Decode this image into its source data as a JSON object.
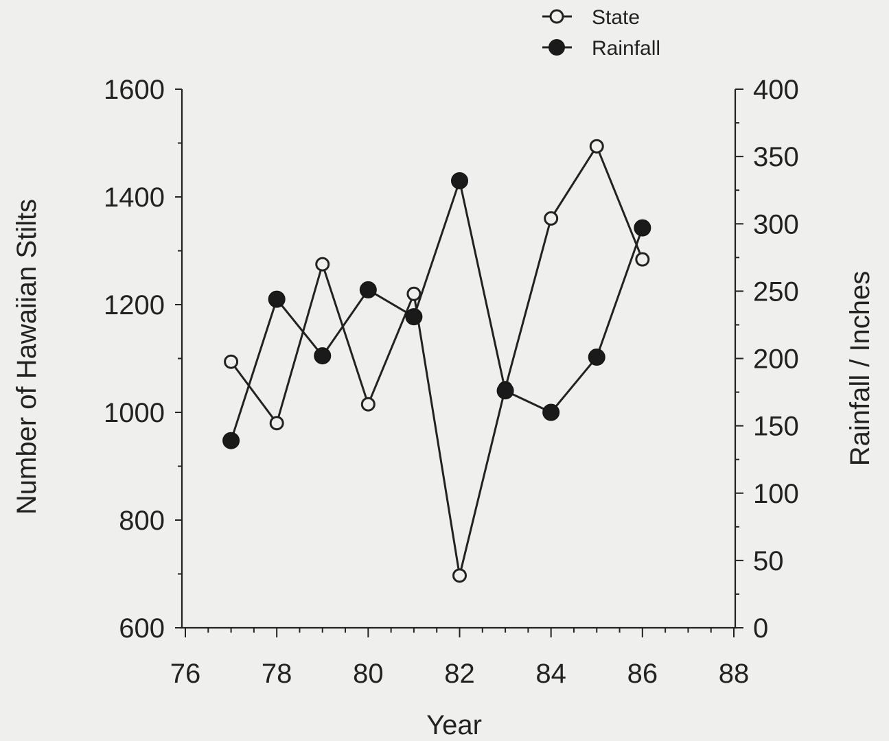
{
  "chart_data": {
    "type": "line",
    "x_label": "Year",
    "y_label_left": "Number of Hawaiian Stilts",
    "y_label_right": "Rainfall / Inches",
    "x_range": [
      76,
      88
    ],
    "x_ticks": [
      "76",
      "78",
      "80",
      "82",
      "84",
      "86",
      "88"
    ],
    "y_left_range": [
      600,
      1600
    ],
    "y_left_ticks": [
      "600",
      "800",
      "1000",
      "1200",
      "1400",
      "1600"
    ],
    "y_right_range": [
      0,
      400
    ],
    "y_right_ticks": [
      "0",
      "50",
      "100",
      "150",
      "200",
      "250",
      "300",
      "350",
      "400"
    ],
    "grid": false,
    "legend_placement": "top-right",
    "series": [
      {
        "name": "State",
        "axis": "left",
        "marker": "open-circle",
        "x": [
          77,
          78,
          79,
          80,
          81,
          82,
          83,
          84,
          85,
          86
        ],
        "y": [
          1094,
          980,
          1275,
          1015,
          1220,
          697,
          1045,
          1360,
          1494,
          1284
        ]
      },
      {
        "name": "Rainfall",
        "axis": "right",
        "marker": "filled-circle",
        "x": [
          77,
          78,
          79,
          80,
          81,
          82,
          83,
          84,
          85,
          86
        ],
        "y": [
          139,
          244,
          202,
          251,
          231,
          332,
          176,
          160,
          201,
          297
        ]
      }
    ]
  }
}
